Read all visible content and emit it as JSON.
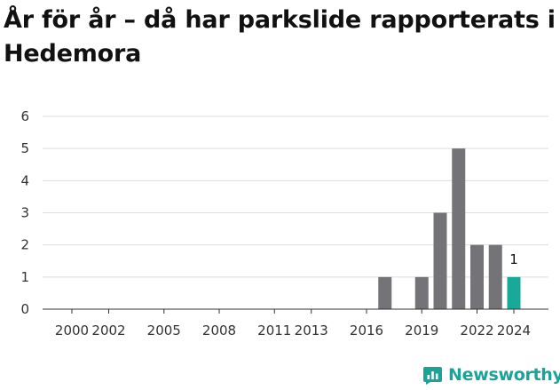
{
  "chart_data": {
    "type": "bar",
    "title": "År för år – då har parkslide rapporterats i Hedemora",
    "xlabel": "",
    "ylabel": "",
    "x": [
      2000,
      2001,
      2002,
      2003,
      2004,
      2005,
      2006,
      2007,
      2008,
      2009,
      2010,
      2011,
      2012,
      2013,
      2014,
      2015,
      2016,
      2017,
      2018,
      2019,
      2020,
      2021,
      2022,
      2023,
      2024
    ],
    "values": [
      0,
      0,
      0,
      0,
      0,
      0,
      0,
      0,
      0,
      0,
      0,
      0,
      0,
      0,
      0,
      0,
      0,
      1,
      0,
      1,
      3,
      5,
      2,
      2,
      1
    ],
    "highlight_x": 2024,
    "xticks": [
      "2000",
      "2002",
      "2005",
      "2008",
      "2011",
      "2013",
      "2016",
      "2019",
      "2022",
      "2024"
    ],
    "yticks": [
      "0",
      "1",
      "2",
      "3",
      "4",
      "5",
      "6"
    ],
    "ylim": [
      0,
      6
    ],
    "data_labels": [
      {
        "x": 2024,
        "text": "1"
      }
    ],
    "grid": true,
    "colors": {
      "bar": "#737378",
      "highlight": "#18a999",
      "grid": "#dddddd",
      "axis": "#333333"
    }
  },
  "brand": {
    "name": "Newsworthy",
    "icon": "bar-chart-logo-icon",
    "color": "#1ca399"
  }
}
